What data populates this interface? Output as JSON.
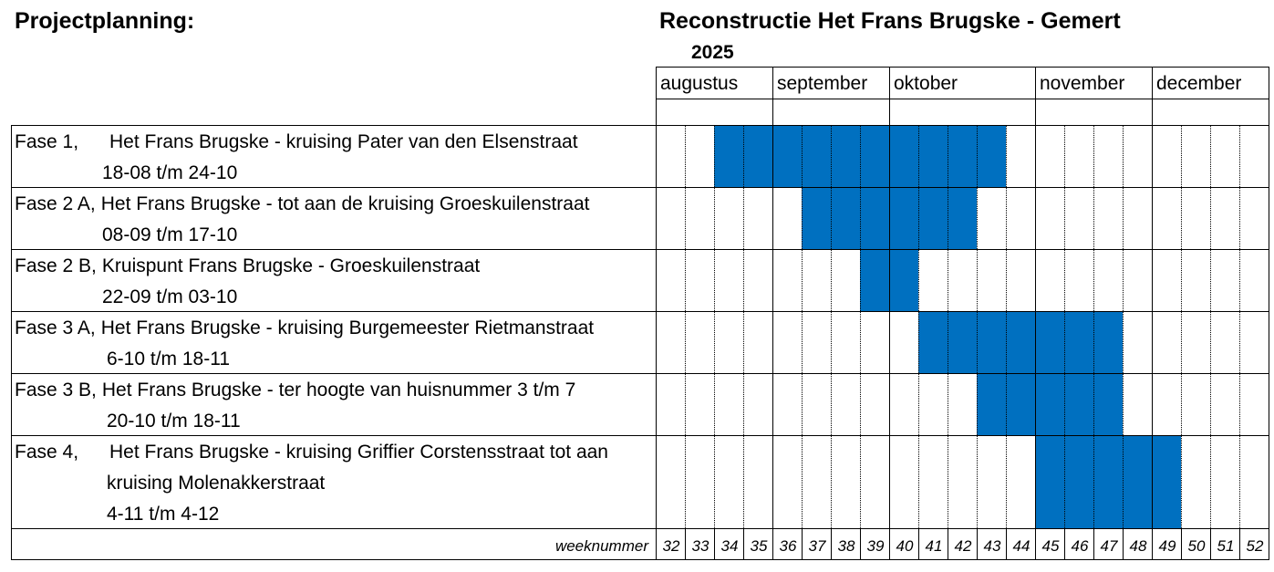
{
  "header": {
    "left_title": "Projectplanning:",
    "right_title": "Reconstructie Het Frans Brugske - Gemert",
    "year": "2025"
  },
  "colors": {
    "bar": "#0070c0",
    "grid": "#000000"
  },
  "chart_data": {
    "type": "gantt",
    "x_label": "weeknummer",
    "weeks": [
      "32",
      "33",
      "34",
      "35",
      "36",
      "37",
      "38",
      "39",
      "40",
      "41",
      "42",
      "43",
      "44",
      "45",
      "46",
      "47",
      "48",
      "49",
      "50",
      "51",
      "52"
    ],
    "months": [
      {
        "label": "augustus",
        "start_week": 32,
        "end_week": 35
      },
      {
        "label": "september",
        "start_week": 36,
        "end_week": 39
      },
      {
        "label": "oktober",
        "start_week": 40,
        "end_week": 44
      },
      {
        "label": "november",
        "start_week": 45,
        "end_week": 48
      },
      {
        "label": "december",
        "start_week": 49,
        "end_week": 52
      }
    ],
    "tasks": [
      {
        "code": "Fase 1,",
        "description": "Het Frans Brugske - kruising Pater van den Elsenstraat",
        "description_line2": "",
        "dates": "18-08 t/m 24-10",
        "start_week": 34,
        "end_week": 43
      },
      {
        "code": "Fase 2 A,",
        "description": "Het Frans Brugske - tot aan de kruising Groeskuilenstraat",
        "description_line2": "",
        "dates": "08-09 t/m 17-10",
        "start_week": 37,
        "end_week": 42
      },
      {
        "code": "Fase 2 B,",
        "description": "Kruispunt Frans Brugske - Groeskuilenstraat",
        "description_line2": "",
        "dates": "22-09 t/m 03-10",
        "start_week": 39,
        "end_week": 40
      },
      {
        "code": "Fase 3 A,",
        "description": "Het Frans Brugske - kruising Burgemeester Rietmanstraat",
        "description_line2": "",
        "dates": "6-10 t/m 18-11",
        "start_week": 41,
        "end_week": 47
      },
      {
        "code": "Fase 3 B,",
        "description": "Het Frans Brugske - ter hoogte van huisnummer 3 t/m 7",
        "description_line2": "",
        "dates": "20-10 t/m 18-11",
        "start_week": 43,
        "end_week": 47
      },
      {
        "code": "Fase 4,",
        "description": "Het Frans Brugske - kruising Griffier Corstensstraat tot aan",
        "description_line2": "kruising Molenakkerstraat",
        "dates": "4-11 t/m 4-12",
        "start_week": 45,
        "end_week": 49
      }
    ]
  }
}
